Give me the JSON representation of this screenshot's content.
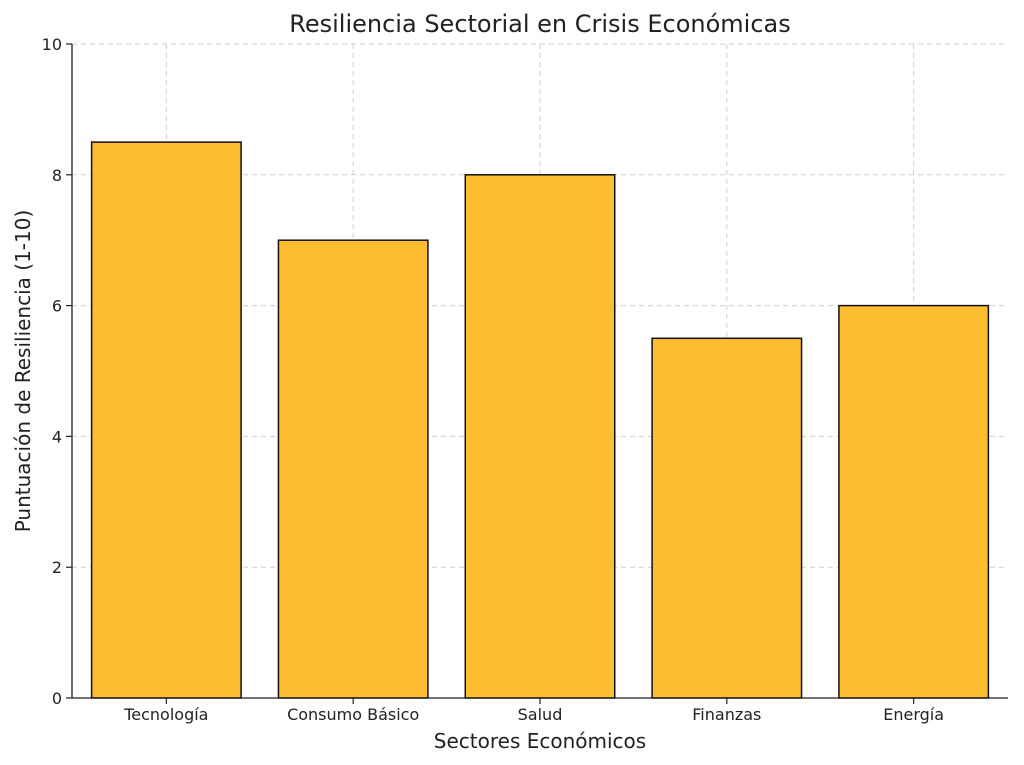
{
  "chart_data": {
    "type": "bar",
    "title": "Resiliencia Sectorial en Crisis Económicas",
    "xlabel": "Sectores Económicos",
    "ylabel": "Puntuación de Resiliencia (1-10)",
    "categories": [
      "Tecnología",
      "Consumo Básico",
      "Salud",
      "Finanzas",
      "Energía"
    ],
    "values": [
      8.5,
      7,
      8,
      5.5,
      6
    ],
    "ylim": [
      0,
      10
    ],
    "yticks": [
      0,
      2,
      4,
      6,
      8,
      10
    ],
    "grid": true,
    "bar_color": "#FDBD30",
    "bar_edge_color": "#111111"
  }
}
